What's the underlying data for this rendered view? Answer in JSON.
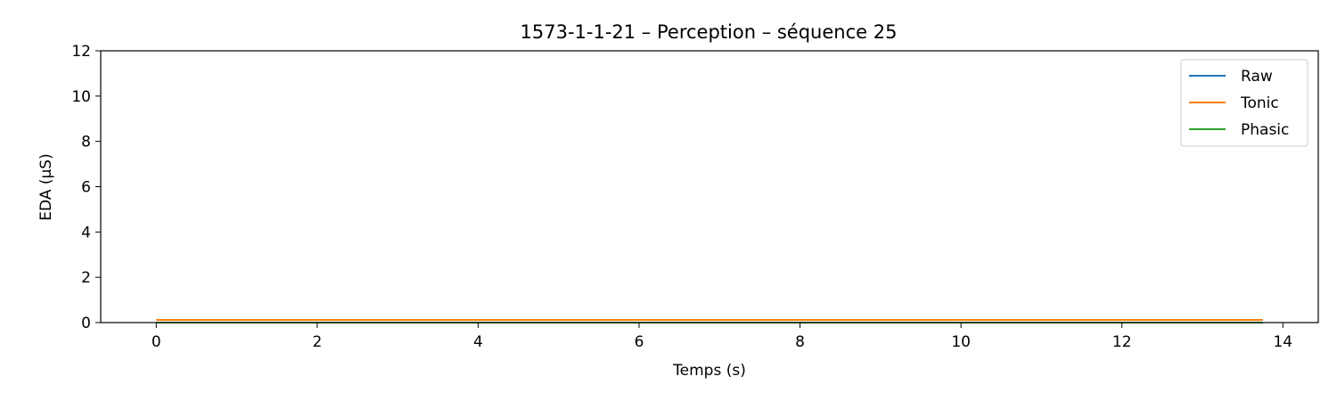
{
  "chart_data": {
    "type": "line",
    "title": "1573-1-1-21 – Perception – séquence 25",
    "xlabel": "Temps (s)",
    "ylabel": "EDA (µS)",
    "xlim": [
      -0.69,
      14.44
    ],
    "ylim": [
      0,
      12
    ],
    "xticks": [
      0,
      2,
      4,
      6,
      8,
      10,
      12,
      14
    ],
    "yticks": [
      0,
      2,
      4,
      6,
      8,
      10,
      12
    ],
    "grid": false,
    "legend_position": "top-right",
    "series": [
      {
        "name": "Raw",
        "color": "#1f77b4",
        "x": [
          0,
          13.75
        ],
        "y": [
          0.12,
          0.12
        ]
      },
      {
        "name": "Tonic",
        "color": "#ff7f0e",
        "x": [
          0,
          13.75
        ],
        "y": [
          0.12,
          0.12
        ]
      },
      {
        "name": "Phasic",
        "color": "#2ca02c",
        "x": [
          0,
          13.75
        ],
        "y": [
          0.0,
          0.0
        ]
      }
    ]
  }
}
